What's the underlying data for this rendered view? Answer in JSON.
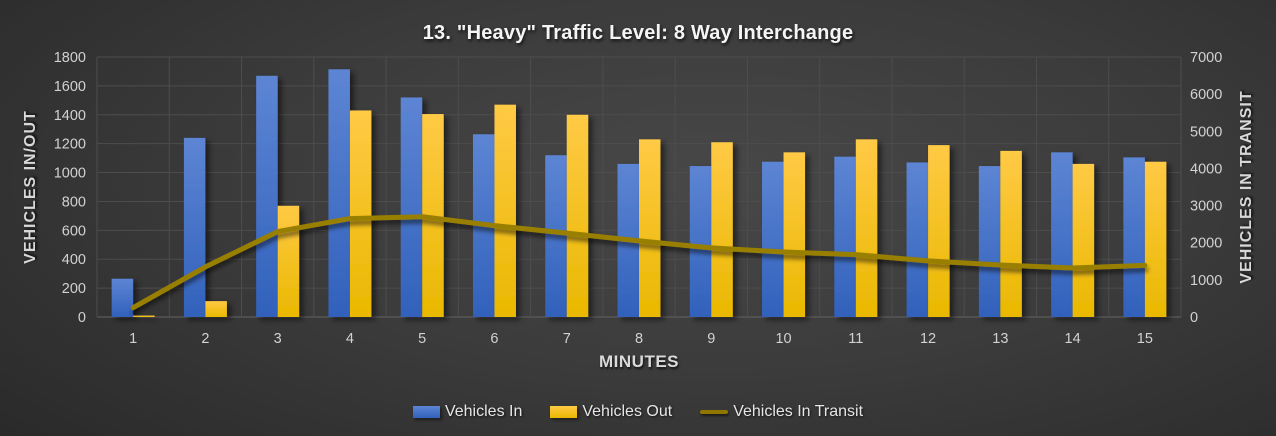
{
  "chart_data": {
    "type": "bar",
    "title": "13. \"Heavy\" Traffic Level: 8 Way Interchange",
    "xlabel": "MINUTES",
    "ylabel_left": "VEHICLES IN/OUT",
    "ylabel_right": "VEHICLES IN TRANSIT",
    "categories": [
      "1",
      "2",
      "3",
      "4",
      "5",
      "6",
      "7",
      "8",
      "9",
      "10",
      "11",
      "12",
      "13",
      "14",
      "15"
    ],
    "series": [
      {
        "name": "Vehicles In",
        "type": "bar",
        "axis": "left",
        "color_top": "#5d85d4",
        "color_bottom": "#3161bb",
        "values": [
          265,
          1240,
          1670,
          1715,
          1520,
          1265,
          1120,
          1060,
          1045,
          1075,
          1110,
          1070,
          1045,
          1140,
          1105
        ]
      },
      {
        "name": "Vehicles Out",
        "type": "bar",
        "axis": "left",
        "color_top": "#ffca45",
        "color_bottom": "#e9b800",
        "values": [
          10,
          110,
          770,
          1430,
          1405,
          1470,
          1400,
          1230,
          1210,
          1140,
          1230,
          1190,
          1150,
          1060,
          1075
        ]
      },
      {
        "name": "Vehicles In Transit",
        "type": "line",
        "axis": "right",
        "color": "#997f04",
        "values": [
          250,
          1350,
          2300,
          2650,
          2700,
          2460,
          2260,
          2050,
          1860,
          1750,
          1680,
          1510,
          1400,
          1320,
          1390
        ]
      }
    ],
    "ylim_left": [
      0,
      1800
    ],
    "yticks_left": [
      0,
      200,
      400,
      600,
      800,
      1000,
      1200,
      1400,
      1600,
      1800
    ],
    "ylim_right": [
      0,
      7000
    ],
    "yticks_right": [
      0,
      1000,
      2000,
      3000,
      4000,
      5000,
      6000,
      7000
    ],
    "grid": true,
    "legend_position": "bottom",
    "colors": {
      "background_center": "#484848",
      "background_edge": "#262626",
      "gridline": "#4d4d4d",
      "axis_line": "#5c5c5c",
      "tick_text": "#d2d2d2",
      "legend_line_swatch": "#8e7600"
    }
  }
}
